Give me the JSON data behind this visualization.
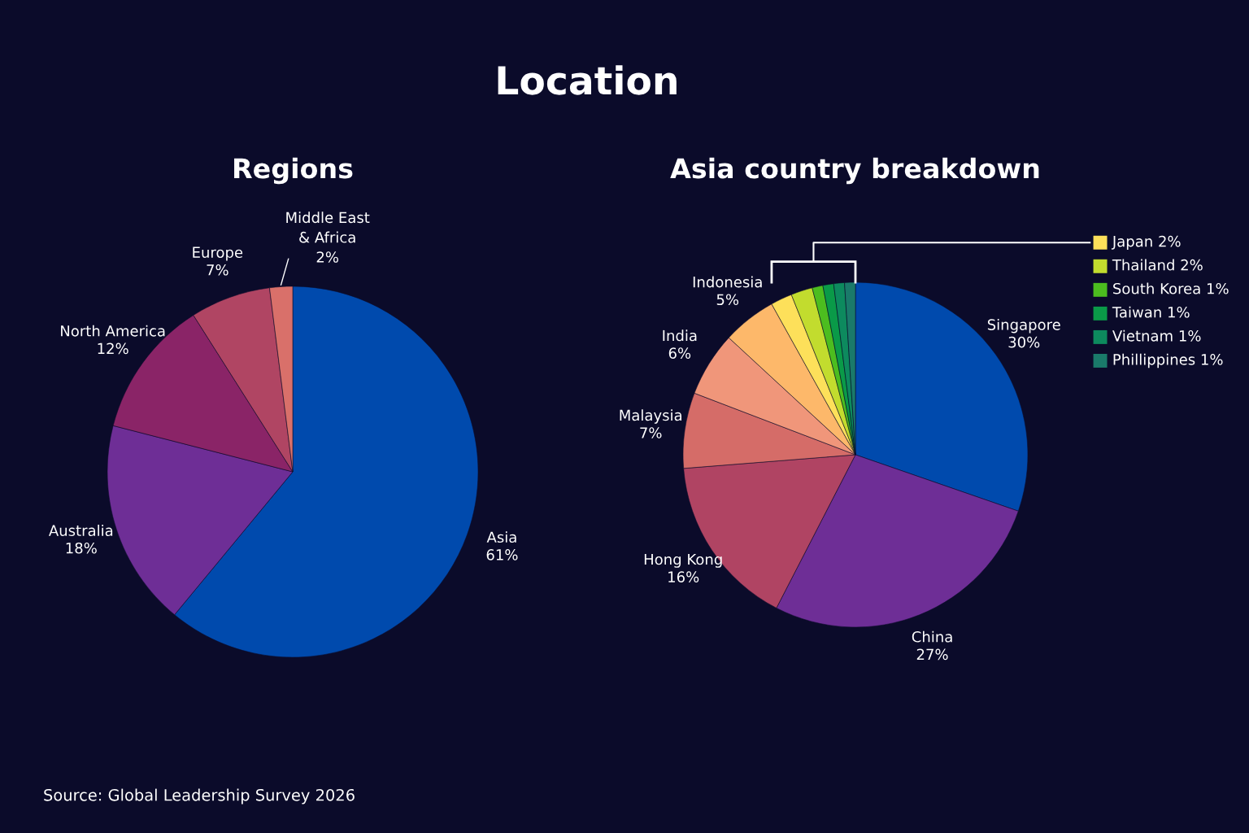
{
  "chart_data": [
    {
      "type": "pie",
      "title": "Regions",
      "annotations": [
        "Location",
        "Source: Global Leadership Survey 2026"
      ],
      "categories": [
        "Asia",
        "Australia",
        "North America",
        "Europe",
        "Middle East\n& Africa"
      ],
      "values": [
        61,
        18,
        12,
        7,
        2
      ],
      "colors": [
        "#004aad",
        "#6e2e96",
        "#8a2467",
        "#b04563",
        "#d9706a"
      ],
      "value_labels": [
        "61%",
        "18%",
        "12%",
        "7%",
        "2%"
      ]
    },
    {
      "type": "pie",
      "title": "Asia country breakdown",
      "legend": "top right",
      "categories": [
        "Singapore",
        "China",
        "Hong Kong",
        "Malaysia",
        "India",
        "Indonesia",
        "Japan",
        "Thailand",
        "South Korea",
        "Taiwan",
        "Vietnam",
        "Phillippines"
      ],
      "values": [
        30,
        27,
        16,
        7,
        6,
        5,
        2,
        2,
        1,
        1,
        1,
        1
      ],
      "colors": [
        "#004aad",
        "#6e2e96",
        "#b04463",
        "#d56c68",
        "#f0967a",
        "#fdb86a",
        "#fde05a",
        "#c2dc2e",
        "#4cbd1f",
        "#0a9a48",
        "#0d8a5e",
        "#1a7a6a"
      ],
      "value_labels": [
        "30%",
        "27%",
        "16%",
        "7%",
        "6%",
        "5%",
        "2%",
        "2%",
        "1%",
        "1%",
        "1%",
        "1%"
      ]
    }
  ]
}
